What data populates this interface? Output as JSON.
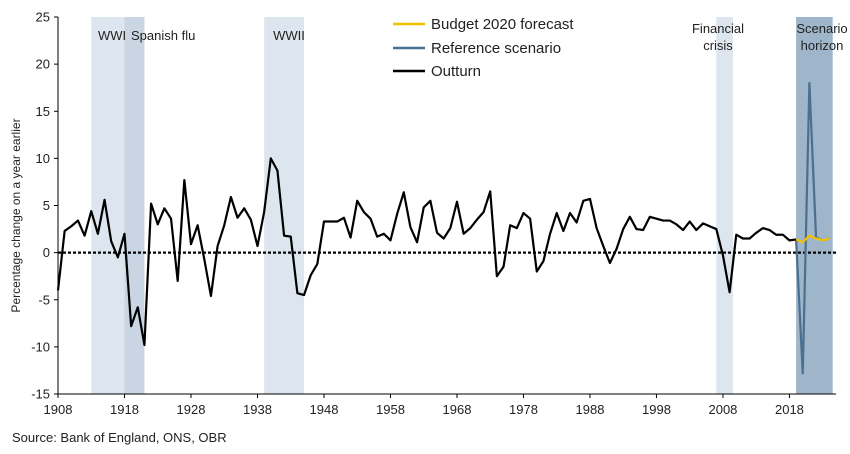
{
  "chart_data": {
    "type": "line",
    "ylabel": "Percentage change on a year earlier",
    "ylim": [
      -15,
      25
    ],
    "yticks": [
      -15,
      -10,
      -5,
      0,
      5,
      10,
      15,
      20,
      25
    ],
    "xlim": [
      1908,
      2025
    ],
    "xticks": [
      1908,
      1918,
      1928,
      1938,
      1948,
      1958,
      1968,
      1978,
      1988,
      1998,
      2008,
      2018
    ],
    "zero_line": "dashed",
    "legend_position": "top-center",
    "bands": [
      {
        "label": "WWI",
        "start": 1913,
        "end": 1919,
        "color": "#dde6ee"
      },
      {
        "label": "Spanish flu",
        "start": 1918,
        "end": 1921,
        "color": "#c9d5e2"
      },
      {
        "label": "WWII",
        "start": 1939,
        "end": 1945,
        "color": "#dde6ee"
      },
      {
        "label": "Financial crisis",
        "start": 2007,
        "end": 2009.5,
        "color": "#dde6ee"
      },
      {
        "label": "Scenario horizon",
        "start": 2019,
        "end": 2024.5,
        "color": "#9fb5c9"
      }
    ],
    "series": [
      {
        "name": "Budget 2020 forecast",
        "color": "#f2c200",
        "x": [
          2019,
          2020,
          2021,
          2022,
          2023,
          2024
        ],
        "y": [
          1.4,
          1.1,
          1.8,
          1.5,
          1.3,
          1.5
        ]
      },
      {
        "name": "Reference scenario",
        "color": "#4a6f8f",
        "x": [
          2019,
          2020,
          2021,
          2022,
          2023,
          2024
        ],
        "y": [
          1.4,
          -12.8,
          18.0,
          1.6,
          1.3,
          1.5
        ]
      },
      {
        "name": "Outturn",
        "color": "#000000",
        "x": [
          1908,
          1909,
          1910,
          1911,
          1912,
          1913,
          1914,
          1915,
          1916,
          1917,
          1918,
          1919,
          1920,
          1921,
          1922,
          1923,
          1924,
          1925,
          1926,
          1927,
          1928,
          1929,
          1930,
          1931,
          1932,
          1933,
          1934,
          1935,
          1936,
          1937,
          1938,
          1939,
          1940,
          1941,
          1942,
          1943,
          1944,
          1945,
          1946,
          1947,
          1948,
          1949,
          1950,
          1951,
          1952,
          1953,
          1954,
          1955,
          1956,
          1957,
          1958,
          1959,
          1960,
          1961,
          1962,
          1963,
          1964,
          1965,
          1966,
          1967,
          1968,
          1969,
          1970,
          1971,
          1972,
          1973,
          1974,
          1975,
          1976,
          1977,
          1978,
          1979,
          1980,
          1981,
          1982,
          1983,
          1984,
          1985,
          1986,
          1987,
          1988,
          1989,
          1990,
          1991,
          1992,
          1993,
          1994,
          1995,
          1996,
          1997,
          1998,
          1999,
          2000,
          2001,
          2002,
          2003,
          2004,
          2005,
          2006,
          2007,
          2008,
          2009,
          2010,
          2011,
          2012,
          2013,
          2014,
          2015,
          2016,
          2017,
          2018,
          2019
        ],
        "y": [
          -4.0,
          2.3,
          2.8,
          3.4,
          1.8,
          4.4,
          2.0,
          5.6,
          1.2,
          -0.5,
          2.0,
          -7.8,
          -5.8,
          -9.8,
          5.2,
          3.0,
          4.7,
          3.6,
          -3.0,
          7.7,
          0.9,
          2.9,
          -0.7,
          -4.6,
          0.7,
          2.9,
          5.9,
          3.7,
          4.7,
          3.5,
          0.7,
          4.3,
          10.0,
          8.7,
          1.8,
          1.7,
          -4.3,
          -4.5,
          -2.4,
          -1.2,
          3.3,
          3.3,
          3.3,
          3.7,
          1.6,
          5.5,
          4.3,
          3.6,
          1.7,
          2.0,
          1.3,
          4.1,
          6.4,
          2.7,
          1.1,
          4.8,
          5.5,
          2.1,
          1.5,
          2.6,
          5.4,
          2.0,
          2.6,
          3.5,
          4.3,
          6.5,
          -2.5,
          -1.5,
          2.9,
          2.6,
          4.2,
          3.6,
          -2.0,
          -0.9,
          2.0,
          4.2,
          2.3,
          4.2,
          3.2,
          5.5,
          5.7,
          2.6,
          0.7,
          -1.1,
          0.4,
          2.5,
          3.8,
          2.5,
          2.4,
          3.8,
          3.6,
          3.4,
          3.4,
          3.0,
          2.4,
          3.3,
          2.4,
          3.1,
          2.8,
          2.5,
          -0.3,
          -4.2,
          1.9,
          1.5,
          1.5,
          2.1,
          2.6,
          2.4,
          1.9,
          1.9,
          1.3,
          1.4
        ]
      }
    ]
  },
  "source": "Source: Bank of England, ONS, OBR"
}
